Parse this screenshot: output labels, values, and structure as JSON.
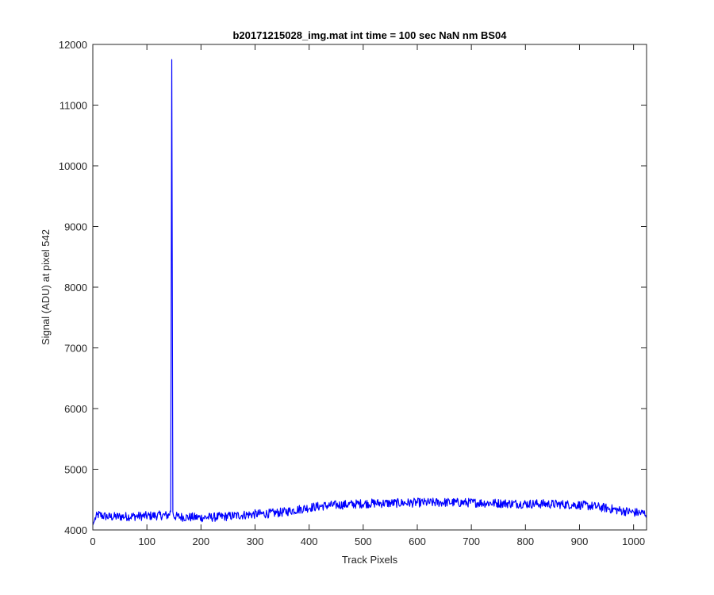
{
  "chart_data": {
    "type": "line",
    "title": "b20171215028_img.mat int time = 100 sec  NaN nm BS04",
    "xlabel": "Track Pixels",
    "ylabel": "Signal (ADU) at pixel 542",
    "xlim": [
      0,
      1024
    ],
    "ylim": [
      4000,
      12000
    ],
    "xticks": [
      0,
      100,
      200,
      300,
      400,
      500,
      600,
      700,
      800,
      900,
      1000
    ],
    "yticks": [
      4000,
      5000,
      6000,
      7000,
      8000,
      9000,
      10000,
      11000,
      12000
    ],
    "grid": false,
    "legend": "none",
    "series": [
      {
        "color": "#0000ff",
        "x": [
          0,
          5,
          10,
          20,
          30,
          50,
          75,
          100,
          125,
          140,
          144,
          146,
          148,
          150,
          155,
          175,
          200,
          225,
          250,
          275,
          300,
          325,
          350,
          375,
          400,
          425,
          450,
          475,
          500,
          525,
          550,
          575,
          600,
          625,
          650,
          675,
          700,
          725,
          750,
          775,
          800,
          825,
          850,
          875,
          900,
          925,
          950,
          975,
          1000,
          1024
        ],
        "y": [
          4080,
          4200,
          4250,
          4230,
          4215,
          4220,
          4225,
          4230,
          4240,
          4240,
          4300,
          11750,
          4300,
          4230,
          4220,
          4210,
          4205,
          4210,
          4225,
          4245,
          4260,
          4270,
          4290,
          4330,
          4370,
          4395,
          4410,
          4420,
          4435,
          4440,
          4440,
          4445,
          4450,
          4450,
          4455,
          4450,
          4450,
          4445,
          4440,
          4435,
          4430,
          4430,
          4425,
          4420,
          4410,
          4390,
          4360,
          4320,
          4290,
          4270
        ]
      }
    ]
  }
}
